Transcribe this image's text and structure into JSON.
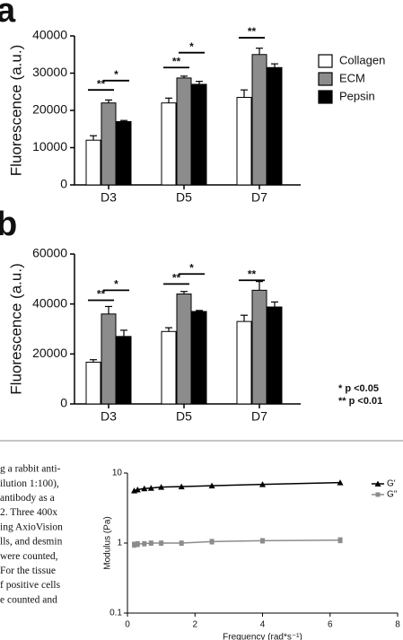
{
  "panel_labels": [
    "a",
    "b"
  ],
  "paper_text": [
    "g a rabbit anti-",
    "ilution 1:100),",
    "antibody as a",
    "2. Three 400x",
    "ing AxioVision",
    "lls, and desmin",
    "were counted,",
    "For the tissue",
    "f positive cells",
    "e counted and"
  ],
  "chart_data": [
    {
      "type": "bar",
      "y_label": "Fluorescence (a.u.)",
      "categories": [
        "D3",
        "D5",
        "D7"
      ],
      "series": [
        {
          "name": "Collagen",
          "color": "#ffffff",
          "values": [
            12000,
            22000,
            23500
          ],
          "errors": [
            1200,
            1300,
            2000
          ]
        },
        {
          "name": "ECM",
          "color": "#8c8c8c",
          "values": [
            22000,
            28700,
            35000
          ],
          "errors": [
            800,
            500,
            1700
          ]
        },
        {
          "name": "Pepsin",
          "color": "#000000",
          "values": [
            17000,
            27000,
            31500
          ],
          "errors": [
            300,
            800,
            1000
          ]
        }
      ],
      "ylim": [
        0,
        40000
      ],
      "yticks": [
        0,
        10000,
        20000,
        30000,
        40000
      ],
      "grid": false,
      "legend": "right",
      "significance": [
        {
          "text": "**",
          "category": 0,
          "pair": [
            0,
            1
          ],
          "y": 25500
        },
        {
          "text": "*",
          "category": 0,
          "pair": [
            1,
            2
          ],
          "y": 28000
        },
        {
          "text": "**",
          "category": 1,
          "pair": [
            0,
            1
          ],
          "y": 31500
        },
        {
          "text": "*",
          "category": 1,
          "pair": [
            1,
            2
          ],
          "y": 35500
        },
        {
          "text": "**",
          "category": 2,
          "pair": [
            0,
            1
          ],
          "y": 39500
        }
      ]
    },
    {
      "type": "bar",
      "y_label": "Fluorescence (a.u.)",
      "categories": [
        "D3",
        "D5",
        "D7"
      ],
      "series": [
        {
          "name": "Collagen",
          "color": "#ffffff",
          "values": [
            16700,
            29000,
            33000
          ],
          "errors": [
            1000,
            1500,
            2500
          ]
        },
        {
          "name": "ECM",
          "color": "#8c8c8c",
          "values": [
            36000,
            44000,
            45500
          ],
          "errors": [
            3000,
            1000,
            3500
          ]
        },
        {
          "name": "Pepsin",
          "color": "#000000",
          "values": [
            27000,
            37000,
            38800
          ],
          "errors": [
            2500,
            400,
            2000
          ]
        }
      ],
      "ylim": [
        0,
        60000
      ],
      "yticks": [
        0,
        20000,
        40000,
        60000
      ],
      "grid": false,
      "notes": [
        "* p <0.05",
        "** p <0.01"
      ],
      "significance": [
        {
          "text": "**",
          "category": 0,
          "pair": [
            0,
            1
          ],
          "y": 41500
        },
        {
          "text": "*",
          "category": 0,
          "pair": [
            1,
            2
          ],
          "y": 45500
        },
        {
          "text": "**",
          "category": 1,
          "pair": [
            0,
            1
          ],
          "y": 48000
        },
        {
          "text": "*",
          "category": 1,
          "pair": [
            1,
            2
          ],
          "y": 52000
        },
        {
          "text": "**",
          "category": 2,
          "pair": [
            0,
            1
          ],
          "y": 49500
        }
      ]
    },
    {
      "type": "line",
      "x_label": "Frequency (rad*s⁻¹)",
      "y_label": "Modulus (Pa)",
      "x": [
        0.2,
        0.3,
        0.5,
        0.7,
        1.0,
        1.6,
        2.5,
        4.0,
        6.3
      ],
      "series": [
        {
          "name": "G'",
          "color": "#000000",
          "marker": "triangle",
          "values": [
            5.6,
            5.8,
            6.0,
            6.1,
            6.3,
            6.4,
            6.6,
            6.9,
            7.3
          ]
        },
        {
          "name": "G''",
          "color": "#8c8c8c",
          "marker": "square",
          "values": [
            0.95,
            0.97,
            0.98,
            1.0,
            1.0,
            1.0,
            1.05,
            1.08,
            1.1
          ],
          "errors": [
            0.08,
            0.08,
            0.07,
            0.07,
            0.07,
            0.07,
            0.08,
            0.08,
            0.09
          ]
        }
      ],
      "xlim": [
        0,
        8
      ],
      "xticks": [
        0,
        2,
        4,
        6,
        8
      ],
      "ylim": [
        0.1,
        10
      ],
      "yticks": [
        10,
        1,
        0.1
      ],
      "ylog": true,
      "grid": false,
      "legend": "right"
    }
  ]
}
